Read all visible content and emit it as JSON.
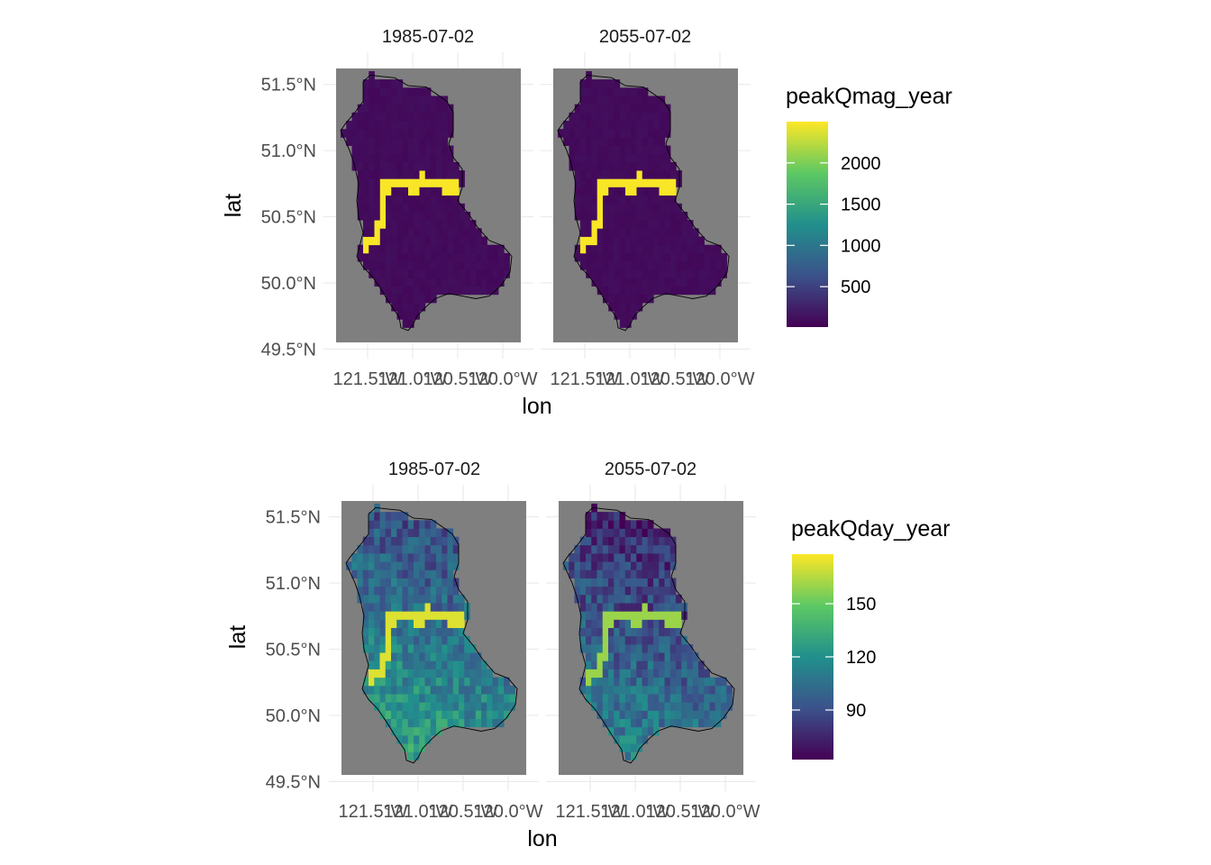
{
  "chart_data": [
    {
      "type": "heatmap",
      "variable": "peakQmag_year",
      "facets": [
        "1985-07-02",
        "2055-07-02"
      ],
      "xlabel": "lon",
      "ylabel": "lat",
      "x_ticks": [
        "121.5°W",
        "121.0°W",
        "120.5°W",
        "120.0°W"
      ],
      "x_tick_values": [
        -121.5,
        -121.0,
        -120.5,
        -120.0
      ],
      "y_ticks": [
        "49.5°N",
        "50.0°N",
        "50.5°N",
        "51.0°N",
        "51.5°N"
      ],
      "y_tick_values": [
        49.5,
        50.0,
        50.5,
        51.0,
        51.5
      ],
      "xlim": [
        -121.85,
        -119.8
      ],
      "ylim": [
        49.55,
        51.62
      ],
      "panel_background": "#7f7f7f",
      "legend": {
        "title": "peakQmag_year",
        "breaks": [
          500,
          1000,
          1500,
          2000
        ],
        "labels": [
          "500",
          "1000",
          "1500",
          "2000"
        ],
        "limits": [
          10,
          2500
        ],
        "colors": [
          "#440154",
          "#3b528b",
          "#21908c",
          "#5dc963",
          "#fde725"
        ]
      },
      "field": {
        "background_value": 60,
        "channel_value": 2480,
        "description_channel": "river channel cells highlighted at maximum value"
      }
    },
    {
      "type": "heatmap",
      "variable": "peakQday_year",
      "facets": [
        "1985-07-02",
        "2055-07-02"
      ],
      "xlabel": "lon",
      "ylabel": "lat",
      "x_ticks": [
        "121.5°W",
        "121.0°W",
        "120.5°W",
        "120.0°W"
      ],
      "x_tick_values": [
        -121.5,
        -121.0,
        -120.5,
        -120.0
      ],
      "y_ticks": [
        "49.5°N",
        "50.0°N",
        "50.5°N",
        "51.0°N",
        "51.5°N"
      ],
      "y_tick_values": [
        49.5,
        50.0,
        50.5,
        51.0,
        51.5
      ],
      "xlim": [
        -121.85,
        -119.8
      ],
      "ylim": [
        49.55,
        51.62
      ],
      "panel_background": "#7f7f7f",
      "legend": {
        "title": "peakQday_year",
        "breaks": [
          90,
          120,
          150
        ],
        "labels": [
          "90",
          "120",
          "150"
        ],
        "limits": [
          62,
          178
        ],
        "colors": [
          "#440154",
          "#3b528b",
          "#21908c",
          "#5dc963",
          "#fde725"
        ]
      },
      "field": {
        "channel_value_1985": 172,
        "channel_value_2055": 160
      }
    }
  ]
}
